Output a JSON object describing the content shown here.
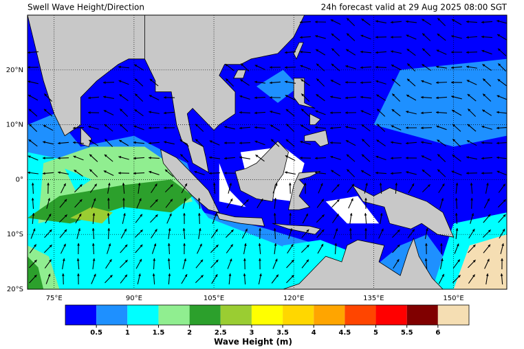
{
  "header": {
    "title": "Swell Wave Height/Direction",
    "subtitle": "24h forecast valid at 29 Aug 2025 08:00 SGT"
  },
  "map": {
    "xlim": [
      70,
      160
    ],
    "ylim": [
      -20,
      30
    ],
    "xticks": [
      {
        "value": 75,
        "label": "75°E"
      },
      {
        "value": 90,
        "label": "90°E"
      },
      {
        "value": 105,
        "label": "105°E"
      },
      {
        "value": 120,
        "label": "120°E"
      },
      {
        "value": 135,
        "label": "135°E"
      },
      {
        "value": 150,
        "label": "150°E"
      }
    ],
    "yticks": [
      {
        "value": 20,
        "label": "20°N"
      },
      {
        "value": 10,
        "label": "10°N"
      },
      {
        "value": 0,
        "label": "0°"
      },
      {
        "value": -10,
        "label": "10°S"
      },
      {
        "value": -20,
        "label": "20°S"
      }
    ]
  },
  "colorbar": {
    "label": "Wave Height (m)",
    "colors": [
      "#0000ff",
      "#1e90ff",
      "#00ffff",
      "#90ee90",
      "#2ca02c",
      "#9acd32",
      "#ffff00",
      "#ffd700",
      "#ffa500",
      "#ff4500",
      "#ff0000",
      "#800000",
      "#f5deb3"
    ],
    "ticks": [
      0.5,
      1,
      1.5,
      2,
      2.5,
      3,
      3.5,
      4,
      4.5,
      5,
      5.5,
      6
    ]
  }
}
